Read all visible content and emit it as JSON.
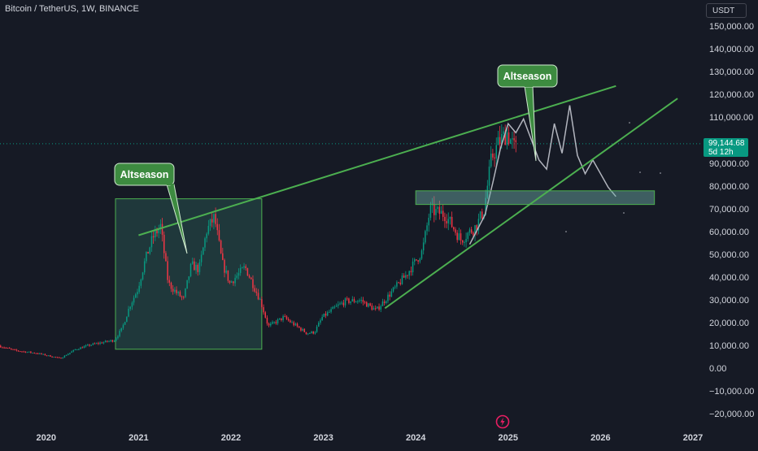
{
  "header": {
    "symbol_info": "Bitcoin / TetherUS, 1W, BINANCE"
  },
  "currency_button": {
    "label": "USDT"
  },
  "price_axis": {
    "labels": [
      "150,000.00",
      "140,000.00",
      "130,000.00",
      "120,000.00",
      "110,000.00",
      "90,000.00",
      "80,000.00",
      "70,000.00",
      "60,000.00",
      "50,000.00",
      "40,000.00",
      "30,000.00",
      "20,000.00",
      "10,000.00",
      "0.00",
      "−10,000.00",
      "−20,000.00"
    ]
  },
  "current_price": {
    "price": "99,144.68",
    "countdown": "5d 12h",
    "color": "#089981"
  },
  "time_axis": {
    "labels": [
      "2020",
      "2021",
      "2022",
      "2023",
      "2024",
      "2025",
      "2026",
      "2027"
    ]
  },
  "annotations": {
    "callouts": [
      {
        "text": "Altseason"
      },
      {
        "text": "Altseason"
      }
    ],
    "colors": {
      "trendline": "#4caf50",
      "callout_fill": "#3d8b40",
      "box_fill": "#2a5e57",
      "projection": "#b2b5be"
    }
  },
  "chart_data": {
    "type": "candlestick",
    "symbol": "BTCUSDT",
    "interval": "1W",
    "exchange": "BINANCE",
    "ylim": [
      -20000,
      150000
    ],
    "x_range": [
      "2019-07",
      "2027-02"
    ],
    "last_price": 99144.68,
    "price_path": [
      [
        "2019-07",
        10500
      ],
      [
        "2019-09",
        8500
      ],
      [
        "2019-12",
        7200
      ],
      [
        "2020-03",
        5000
      ],
      [
        "2020-05",
        9000
      ],
      [
        "2020-07",
        11000
      ],
      [
        "2020-10",
        13000
      ],
      [
        "2020-11",
        18000
      ],
      [
        "2020-12",
        28000
      ],
      [
        "2021-01",
        35000
      ],
      [
        "2021-02",
        48000
      ],
      [
        "2021-03",
        58000
      ],
      [
        "2021-04",
        63000
      ],
      [
        "2021-05",
        38000
      ],
      [
        "2021-06",
        34000
      ],
      [
        "2021-07",
        31000
      ],
      [
        "2021-08",
        46000
      ],
      [
        "2021-09",
        44000
      ],
      [
        "2021-10",
        61000
      ],
      [
        "2021-11",
        67000
      ],
      [
        "2021-12",
        47000
      ],
      [
        "2022-01",
        38000
      ],
      [
        "2022-03",
        45000
      ],
      [
        "2022-05",
        30000
      ],
      [
        "2022-06",
        19000
      ],
      [
        "2022-08",
        23000
      ],
      [
        "2022-11",
        16000
      ],
      [
        "2022-12",
        16500
      ],
      [
        "2023-01",
        23000
      ],
      [
        "2023-03",
        28000
      ],
      [
        "2023-04",
        30000
      ],
      [
        "2023-06",
        30500
      ],
      [
        "2023-08",
        26000
      ],
      [
        "2023-10",
        34000
      ],
      [
        "2023-12",
        42000
      ],
      [
        "2024-02",
        52000
      ],
      [
        "2024-03",
        70000
      ],
      [
        "2024-05",
        68000
      ],
      [
        "2024-07",
        57000
      ],
      [
        "2024-08",
        60000
      ],
      [
        "2024-09",
        63000
      ],
      [
        "2024-10",
        70000
      ],
      [
        "2024-11",
        93000
      ],
      [
        "2024-12",
        100000
      ],
      [
        "2025-01",
        104000
      ],
      [
        "2025-02",
        97000
      ]
    ],
    "projection_path": [
      [
        "2024-08",
        55000
      ],
      [
        "2024-10",
        68000
      ],
      [
        "2024-11",
        82000
      ],
      [
        "2024-12",
        97000
      ],
      [
        "2025-01",
        108000
      ],
      [
        "2025-02",
        104000
      ],
      [
        "2025-03",
        110000
      ],
      [
        "2025-05",
        92000
      ],
      [
        "2025-06",
        88000
      ],
      [
        "2025-07",
        108000
      ],
      [
        "2025-08",
        95000
      ],
      [
        "2025-09",
        116000
      ],
      [
        "2025-10",
        94000
      ],
      [
        "2025-11",
        86000
      ],
      [
        "2025-12",
        92000
      ],
      [
        "2026-02",
        80000
      ],
      [
        "2026-03",
        76000
      ]
    ],
    "drawings": {
      "upper_trendline": [
        [
          "2021-01",
          59000
        ],
        [
          "2026-03",
          124500
        ]
      ],
      "lower_trendline": [
        [
          "2023-09",
          27000
        ],
        [
          "2026-11",
          119000
        ]
      ],
      "support_zone": {
        "x": [
          "2024-01",
          "2026-08"
        ],
        "y": [
          72500,
          78500
        ]
      },
      "cycle_box": {
        "x": [
          "2020-10",
          "2022-05"
        ],
        "y": [
          9000,
          75000
        ]
      }
    }
  }
}
